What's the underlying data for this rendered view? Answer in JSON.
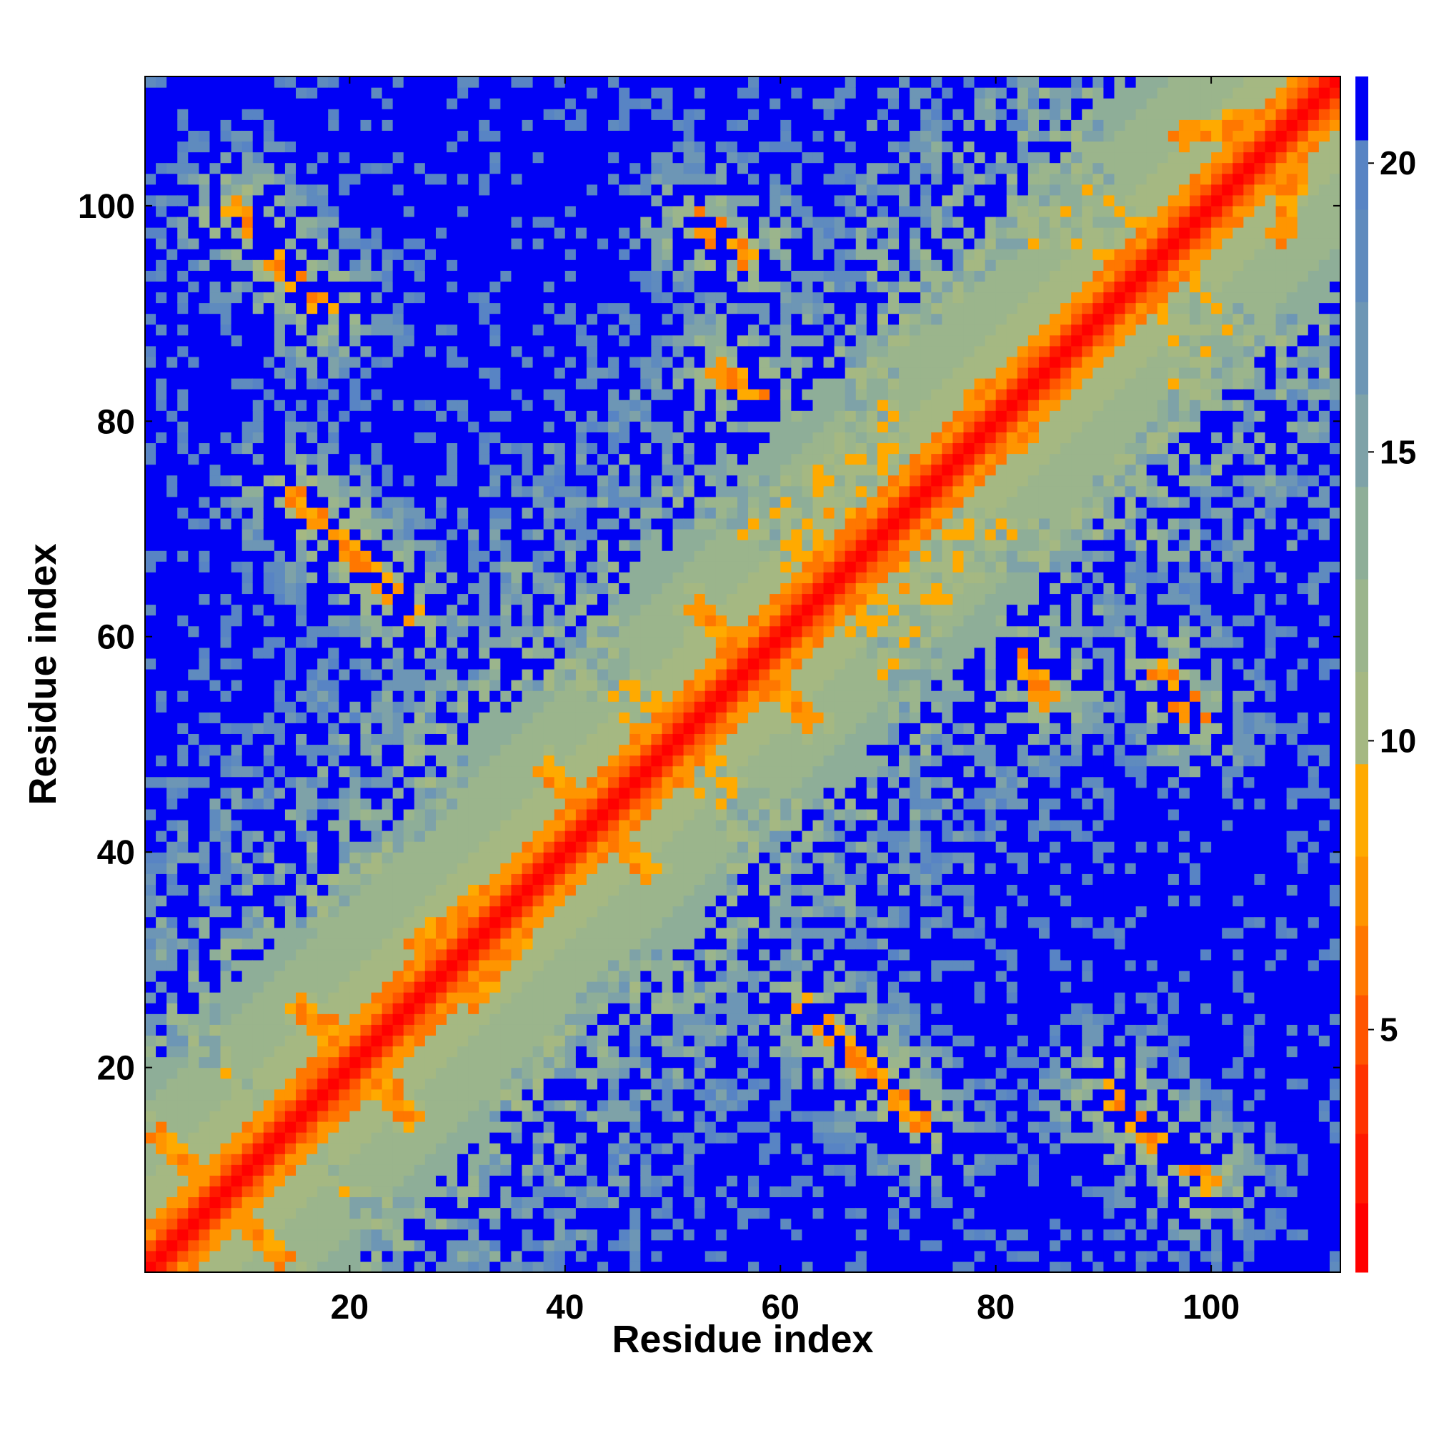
{
  "chart_data": {
    "type": "heatmap",
    "title": "",
    "xlabel": "Residue index",
    "ylabel": "Residue index",
    "n_residues": 111,
    "xlim": [
      1,
      112
    ],
    "ylim": [
      1,
      112
    ],
    "x_ticks": [
      20,
      40,
      60,
      80,
      100
    ],
    "y_ticks": [
      20,
      40,
      60,
      80,
      100
    ],
    "x_tick_labels": [
      "20",
      "40",
      "60",
      "80",
      "100"
    ],
    "y_tick_labels": [
      "20",
      "40",
      "60",
      "80",
      "100"
    ],
    "colorbar": {
      "range": [
        0.8,
        21.5
      ],
      "ticks": [
        5,
        10,
        15,
        20
      ],
      "tick_labels": [
        "5",
        "10",
        "15",
        "20"
      ],
      "colors": [
        {
          "from": 0.8,
          "to": 2.0,
          "color": "#ff0000"
        },
        {
          "from": 2.0,
          "to": 3.2,
          "color": "#ff1a00"
        },
        {
          "from": 3.2,
          "to": 4.4,
          "color": "#ff3300"
        },
        {
          "from": 4.4,
          "to": 5.6,
          "color": "#ff5500"
        },
        {
          "from": 5.6,
          "to": 6.8,
          "color": "#ff7700"
        },
        {
          "from": 6.8,
          "to": 8.0,
          "color": "#ff9500"
        },
        {
          "from": 8.0,
          "to": 9.6,
          "color": "#ffaa00"
        },
        {
          "from": 9.6,
          "to": 11.2,
          "color": "#a5b882"
        },
        {
          "from": 11.2,
          "to": 12.8,
          "color": "#9bb58c"
        },
        {
          "from": 12.8,
          "to": 14.4,
          "color": "#8eae98"
        },
        {
          "from": 14.4,
          "to": 16.0,
          "color": "#7ea2a8"
        },
        {
          "from": 16.0,
          "to": 17.6,
          "color": "#6d96b5"
        },
        {
          "from": 17.6,
          "to": 19.2,
          "color": "#5f8bbe"
        },
        {
          "from": 19.2,
          "to": 20.4,
          "color": "#5884c4"
        },
        {
          "from": 20.4,
          "to": 21.5,
          "color": "#0000f5"
        }
      ]
    },
    "matrix_description_values": {
      "diagonal": 0.8,
      "near_diagonal": 6,
      "saturated": 21.5
    },
    "contact_segments": [
      {
        "a": [
          2,
          13
        ],
        "b": [
          13,
          2
        ],
        "strength": 6
      },
      {
        "a": [
          9,
          99
        ],
        "b": [
          17,
          90
        ],
        "strength": 6
      },
      {
        "a": [
          90,
          16
        ],
        "b": [
          100,
          7
        ],
        "strength": 6
      },
      {
        "a": [
          26,
          31
        ],
        "b": [
          38,
          40
        ],
        "strength": 6
      },
      {
        "a": [
          31,
          26
        ],
        "b": [
          40,
          38
        ],
        "strength": 6
      },
      {
        "a": [
          14,
          73
        ],
        "b": [
          25,
          62
        ],
        "strength": 6
      },
      {
        "a": [
          62,
          25
        ],
        "b": [
          73,
          14
        ],
        "strength": 6
      },
      {
        "a": [
          52,
          62
        ],
        "b": [
          62,
          52
        ],
        "strength": 6
      },
      {
        "a": [
          38,
          47
        ],
        "b": [
          47,
          38
        ],
        "strength": 6
      },
      {
        "a": [
          52,
          98
        ],
        "b": [
          56,
          95
        ],
        "strength": 6
      },
      {
        "a": [
          95,
          56
        ],
        "b": [
          98,
          52
        ],
        "strength": 6
      },
      {
        "a": [
          97,
          106
        ],
        "b": [
          109,
          109
        ],
        "strength": 6
      },
      {
        "a": [
          106,
          97
        ],
        "b": [
          109,
          109
        ],
        "strength": 6
      },
      {
        "a": [
          78,
          82
        ],
        "b": [
          88,
          85
        ],
        "strength": 6
      },
      {
        "a": [
          82,
          78
        ],
        "b": [
          85,
          88
        ],
        "strength": 6
      },
      {
        "a": [
          15,
          25
        ],
        "b": [
          25,
          17
        ],
        "strength": 6
      },
      {
        "a": [
          73,
          27
        ],
        "b": [
          78,
          22
        ],
        "strength": 6
      },
      {
        "a": [
          64,
          26
        ],
        "b": [
          66,
          24
        ],
        "strength": 6
      },
      {
        "a": [
          54,
          84
        ],
        "b": [
          58,
          82
        ],
        "strength": 6
      },
      {
        "a": [
          84,
          58
        ],
        "b": [
          87,
          55
        ],
        "strength": 6
      },
      {
        "a": [
          18,
          23
        ],
        "b": [
          25,
          18
        ],
        "strength": 6
      }
    ]
  }
}
